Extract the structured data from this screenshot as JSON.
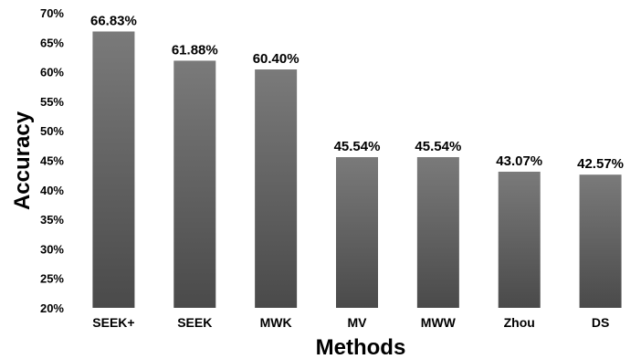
{
  "chart_data": {
    "type": "bar",
    "title": "",
    "xlabel": "Methods",
    "ylabel": "Accuracy",
    "categories": [
      "SEEK+",
      "SEEK",
      "MWK",
      "MV",
      "MWW",
      "Zhou",
      "DS"
    ],
    "values": [
      66.83,
      61.88,
      60.4,
      45.54,
      45.54,
      43.07,
      42.57
    ],
    "data_labels": [
      "66.83%",
      "61.88%",
      "60.40%",
      "45.54%",
      "45.54%",
      "43.07%",
      "42.57%"
    ],
    "ylim": [
      20,
      70
    ],
    "yticks": [
      20,
      25,
      30,
      35,
      40,
      45,
      50,
      55,
      60,
      65,
      70
    ],
    "ytick_labels": [
      "20%",
      "25%",
      "30%",
      "35%",
      "40%",
      "45%",
      "50%",
      "55%",
      "60%",
      "65%",
      "70%"
    ],
    "grid": false,
    "legend": "none",
    "bar_color_top": "#7a7a7a",
    "bar_color_bottom": "#4a4a4a"
  }
}
